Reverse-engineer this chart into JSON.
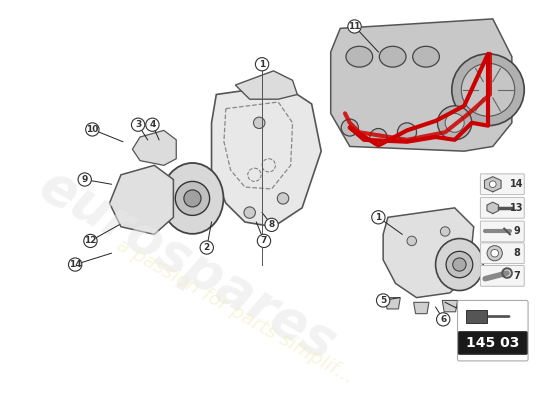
{
  "background_color": "#ffffff",
  "title": "",
  "page_id": "145 03",
  "watermark_text": "eurospares",
  "watermark_subtext": "a passion for parts simplif",
  "watermark_color": "#e8e8e8",
  "part_numbers": [
    1,
    2,
    3,
    4,
    5,
    6,
    7,
    8,
    9,
    10,
    11,
    12,
    13,
    14
  ],
  "label_color": "#222222",
  "line_color": "#222222",
  "red_belt_color": "#cc0000",
  "border_color": "#cccccc",
  "badge_bg": "#1a1a1a",
  "badge_text_color": "#ffffff",
  "badge_icon_color": "#ffffff",
  "diagram_bg": "#f5f5f5"
}
